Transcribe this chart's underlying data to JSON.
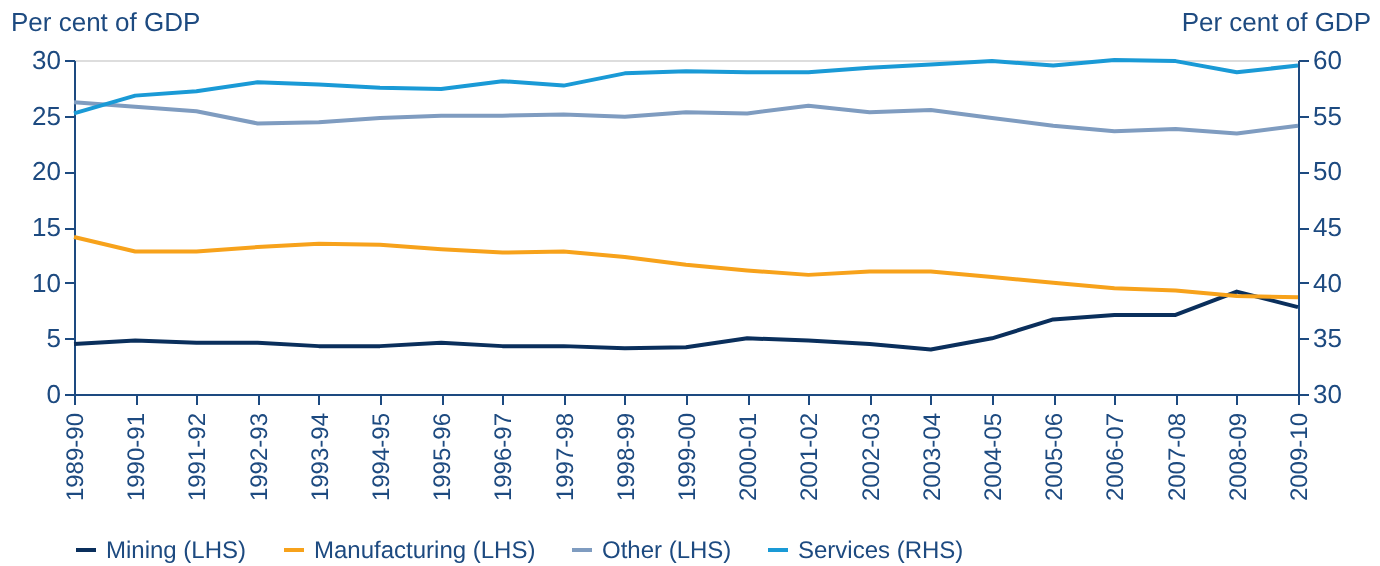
{
  "chart_data": {
    "type": "line",
    "ylabel": "Per cent of GDP",
    "y2label": "Per cent of GDP",
    "categories": [
      "1989-90",
      "1990-91",
      "1991-92",
      "1992-93",
      "1993-94",
      "1994-95",
      "1995-96",
      "1996-97",
      "1997-98",
      "1998-99",
      "1999-00",
      "2000-01",
      "2001-02",
      "2002-03",
      "2003-04",
      "2004-05",
      "2005-06",
      "2006-07",
      "2007-08",
      "2008-09",
      "2009-10"
    ],
    "series": [
      {
        "name": "Mining (LHS)",
        "color": "#0a2f5c",
        "values": [
          4.5,
          4.8,
          4.6,
          4.6,
          4.3,
          4.3,
          4.6,
          4.3,
          4.3,
          4.1,
          4.2,
          5.0,
          4.8,
          4.5,
          4.0,
          5.0,
          6.7,
          7.1,
          7.1,
          9.2,
          7.8
        ]
      },
      {
        "name": "Manufacturing (LHS)",
        "color": "#f7a21b",
        "values": [
          14.1,
          12.8,
          12.8,
          13.2,
          13.5,
          13.4,
          13.0,
          12.7,
          12.8,
          12.3,
          11.6,
          11.1,
          10.7,
          11.0,
          11.0,
          10.5,
          10.0,
          9.5,
          9.3,
          8.8,
          8.7
        ]
      },
      {
        "name": "Other (LHS)",
        "color": "#7f9cc0",
        "values": [
          26.2,
          25.8,
          25.4,
          24.3,
          24.4,
          24.8,
          25.0,
          25.0,
          25.1,
          24.9,
          25.3,
          25.2,
          25.9,
          25.3,
          25.5,
          24.8,
          24.1,
          23.6,
          23.8,
          23.4,
          24.1
        ]
      },
      {
        "name": "Services (RHS)",
        "color": "#1a9ad6",
        "axis": "y2",
        "values": [
          55.2,
          56.8,
          57.2,
          58.0,
          57.8,
          57.5,
          57.4,
          58.1,
          57.7,
          58.8,
          59.0,
          58.9,
          58.9,
          59.3,
          59.6,
          59.9,
          59.5,
          60.0,
          59.9,
          58.9,
          59.5
        ]
      }
    ],
    "ylim": [
      0,
      30
    ],
    "yticks": [
      0,
      5,
      10,
      15,
      20,
      25,
      30
    ],
    "y2lim": [
      30,
      60
    ],
    "y2ticks": [
      30,
      35,
      40,
      45,
      50,
      55,
      60
    ],
    "grid": false,
    "legend": "bottom",
    "line_style": "solid",
    "marker": "none"
  }
}
